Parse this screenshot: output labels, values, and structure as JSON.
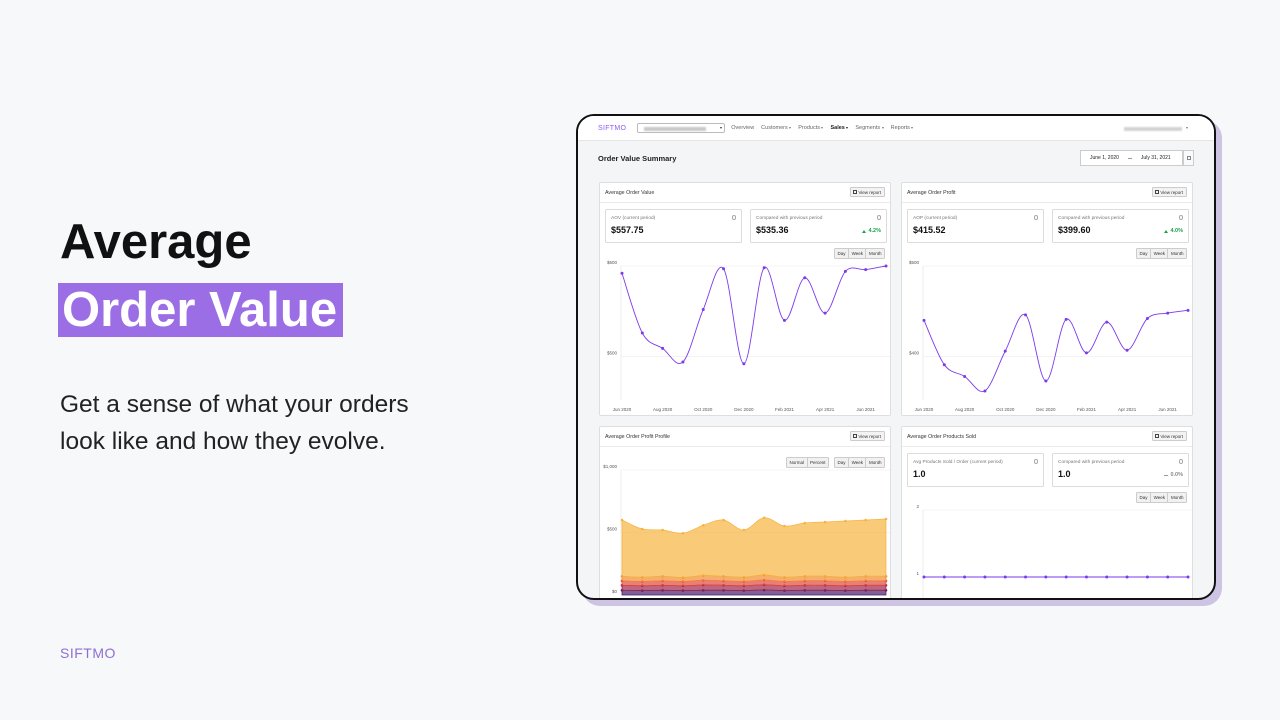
{
  "headline": {
    "line1": "Average",
    "line2": "Order Value"
  },
  "description": "Get a sense of what your orders look like and how they evolve.",
  "brand": "SIFTMO",
  "app": {
    "logo": "SIFTMO",
    "nav": [
      {
        "label": "Overview",
        "dropdown": false,
        "active": false
      },
      {
        "label": "Customers",
        "dropdown": true,
        "active": false
      },
      {
        "label": "Products",
        "dropdown": true,
        "active": false
      },
      {
        "label": "Sales",
        "dropdown": true,
        "active": true
      },
      {
        "label": "Segments",
        "dropdown": true,
        "active": false
      },
      {
        "label": "Reports",
        "dropdown": true,
        "active": false
      }
    ],
    "page_title": "Order Value Summary",
    "date_start": "June 1, 2020",
    "date_end": "July 31, 2021",
    "panels": [
      {
        "title": "Average Order Value",
        "button": "View report",
        "metrics": [
          {
            "label": "AOV (current period)",
            "value": "$557.75"
          },
          {
            "label": "Compared with previous period",
            "value": "$535.36",
            "change": "4.2%",
            "trend": "up"
          }
        ],
        "toggle_groups": [
          [
            "Day",
            "Week",
            "Month"
          ]
        ],
        "chart_data": {
          "type": "line",
          "categories": [
            "Jun 2020",
            null,
            "Aug 2020",
            null,
            "Oct 2020",
            null,
            "Dec 2020",
            null,
            "Feb 2021",
            null,
            "Apr 2021",
            null,
            "Jun 2021",
            null
          ],
          "series": [
            {
              "color": "#7c3aed",
              "values": [
                592,
                526,
                509,
                494,
                552,
                597,
                492,
                598,
                540,
                587,
                548,
                594,
                596,
                600
              ]
            }
          ],
          "ylim": [
            452,
            600
          ],
          "yticks": [
            {
              "value": 500,
              "label": "$500"
            },
            {
              "value": 600,
              "label": "$600"
            }
          ]
        }
      },
      {
        "title": "Average Order Profit",
        "button": "View report",
        "metrics": [
          {
            "label": "AOP (current period)",
            "value": "$415.52"
          },
          {
            "label": "Compared with previous period",
            "value": "$399.60",
            "change": "4.0%",
            "trend": "up"
          }
        ],
        "toggle_groups": [
          [
            "Day",
            "Week",
            "Month"
          ]
        ],
        "chart_data": {
          "type": "line",
          "categories": [
            "Jun 2020",
            null,
            "Aug 2020",
            null,
            "Oct 2020",
            null,
            "Dec 2020",
            null,
            "Feb 2021",
            null,
            "Apr 2021",
            null,
            "Jun 2021",
            null
          ],
          "series": [
            {
              "color": "#7c3aed",
              "values": [
                440,
                391,
                378,
                362,
                406,
                446,
                373,
                441,
                404,
                438,
                407,
                442,
                448,
                451
              ]
            }
          ],
          "ylim": [
            352,
            500
          ],
          "yticks": [
            {
              "value": 400,
              "label": "$400"
            },
            {
              "value": 500,
              "label": "$500"
            }
          ]
        }
      },
      {
        "title": "Average Order Profit Profile",
        "button": "View report",
        "toggle_groups": [
          [
            "Normal",
            "Percent"
          ],
          [
            "Day",
            "Week",
            "Month"
          ]
        ],
        "chart_data": {
          "type": "stacked-area",
          "categories": [
            null,
            null,
            null,
            null,
            null,
            null,
            null,
            null,
            null,
            null,
            null,
            null,
            null,
            null
          ],
          "series": [
            {
              "color": "#4a1d6e",
              "values": [
                38,
                36,
                38,
                36,
                38,
                38,
                36,
                40,
                36,
                38,
                38,
                36,
                38,
                38
              ]
            },
            {
              "color": "#a3244a",
              "values": [
                40,
                38,
                40,
                38,
                42,
                40,
                38,
                42,
                38,
                40,
                40,
                38,
                40,
                40
              ]
            },
            {
              "color": "#e0483f",
              "values": [
                36,
                34,
                36,
                34,
                38,
                36,
                34,
                38,
                34,
                36,
                36,
                34,
                36,
                36
              ]
            },
            {
              "color": "#f28b30",
              "values": [
                36,
                34,
                36,
                32,
                38,
                36,
                34,
                40,
                34,
                36,
                36,
                34,
                36,
                36
              ]
            },
            {
              "color": "#f7b43f",
              "values": [
                450,
                386,
                370,
                354,
                402,
                450,
                378,
                458,
                410,
                426,
                434,
                450,
                450,
                458
              ]
            }
          ],
          "ylim": [
            0,
            1000
          ],
          "yticks": [
            {
              "value": 0,
              "label": "$0"
            },
            {
              "value": 500,
              "label": "$500"
            },
            {
              "value": 1000,
              "label": "$1,000"
            }
          ]
        }
      },
      {
        "title": "Average Order Products Sold",
        "button": "View report",
        "metrics": [
          {
            "label": "Avg Products Sold / Order (current period)",
            "value": "1.0"
          },
          {
            "label": "Compared with previous period",
            "value": "1.0",
            "change": "0.0%",
            "trend": "flat"
          }
        ],
        "toggle_groups": [
          [
            "Day",
            "Week",
            "Month"
          ]
        ],
        "chart_data": {
          "type": "line",
          "categories": [
            null,
            null,
            null,
            null,
            null,
            null,
            null,
            null,
            null,
            null,
            null,
            null,
            null,
            null
          ],
          "series": [
            {
              "color": "#7c3aed",
              "values": [
                1,
                1,
                1,
                1,
                1,
                1,
                1,
                1,
                1,
                1,
                1,
                1,
                1,
                1
              ]
            }
          ],
          "ylim": [
            0,
            2
          ],
          "yticks": [
            1,
            2
          ]
        }
      }
    ]
  }
}
